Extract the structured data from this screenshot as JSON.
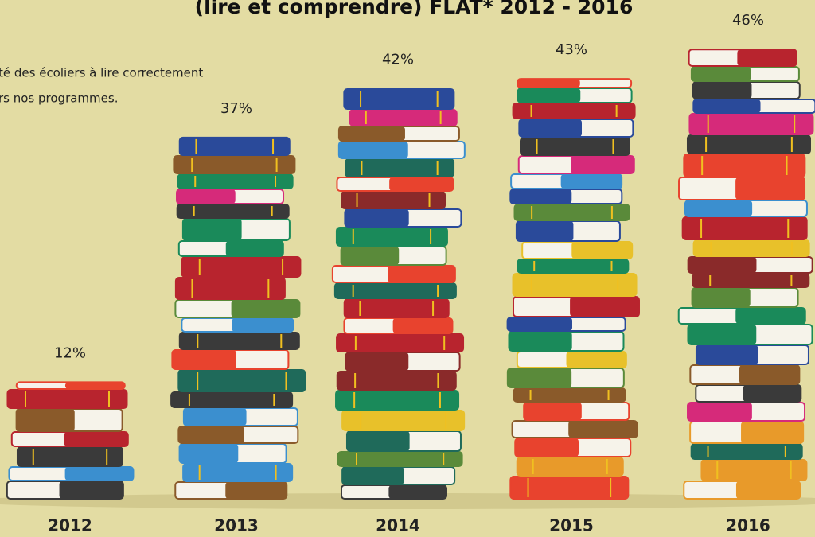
{
  "chart_data": {
    "type": "bar",
    "title": "(lire et comprendre) FLAT* 2012 - 2016",
    "subtitle": [
      "té des écoliers à lire correctement",
      "rs nos programmes."
    ],
    "categories": [
      "2012",
      "2013",
      "2014",
      "2015",
      "2016"
    ],
    "values": [
      12,
      37,
      42,
      43,
      46
    ],
    "value_labels": [
      "12%",
      "37%",
      "42%",
      "43%",
      "46%"
    ]
  }
}
